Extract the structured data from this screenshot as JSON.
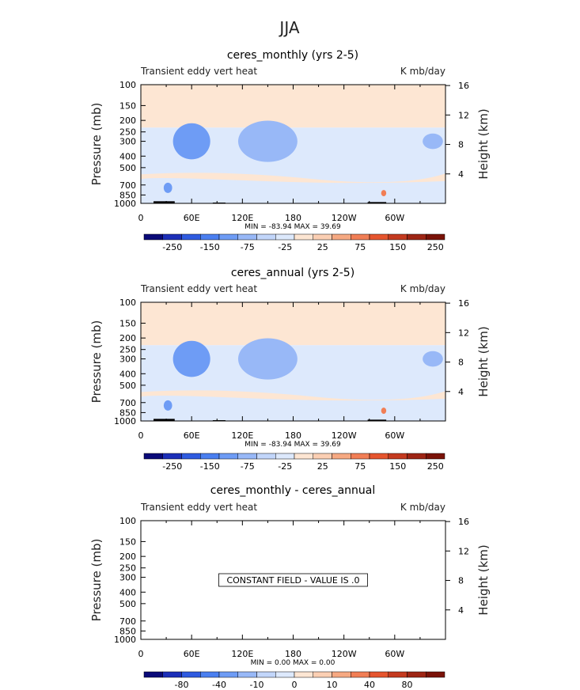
{
  "page_title": "JJA",
  "chart_data": [
    {
      "type": "heatmap",
      "title": "ceres_monthly (yrs 2-5)",
      "left_label": "Transient eddy vert heat",
      "right_label": "K mb/day",
      "ylabel": "Pressure (mb)",
      "ylabel_right": "Height (km)",
      "x_ticks": [
        "0",
        "60E",
        "120E",
        "180",
        "120W",
        "60W"
      ],
      "x_tick_values": [
        0,
        60,
        120,
        180,
        240,
        300
      ],
      "xlim": [
        0,
        360
      ],
      "y_ticks": [
        "100",
        "150",
        "200",
        "250",
        "300",
        "400",
        "500",
        "700",
        "850",
        "1000"
      ],
      "y_tick_values": [
        100,
        150,
        200,
        250,
        300,
        400,
        500,
        700,
        850,
        1000
      ],
      "ylim": [
        100,
        1000
      ],
      "y_scale": "log",
      "y_right_ticks": [
        "16",
        "12",
        "8",
        "4"
      ],
      "y_right_values": [
        16,
        12,
        8,
        4
      ],
      "stats": "MIN = -83.94   MAX =  39.69",
      "colorbar_labels": [
        "-250",
        "-150",
        "-75",
        "-25",
        "25",
        "75",
        "150",
        "250"
      ],
      "features": [
        {
          "lon": 60,
          "p": 300,
          "level": -40,
          "rx": 14,
          "ry": 0.2
        },
        {
          "lon": 60,
          "p": 300,
          "level": -20,
          "rx": 22,
          "ry": 0.35
        },
        {
          "lon": 150,
          "p": 300,
          "level": -20,
          "rx": 20,
          "ry": 0.22
        },
        {
          "lon": 150,
          "p": 300,
          "level": -10,
          "rx": 35,
          "ry": 0.4
        },
        {
          "lon": 345,
          "p": 300,
          "level": -10,
          "rx": 12,
          "ry": 0.15
        },
        {
          "lon": 32,
          "p": 740,
          "level": -20,
          "rx": 5,
          "ry": 0.1
        },
        {
          "lon": 287,
          "p": 820,
          "level": 20,
          "rx": 3,
          "ry": 0.06
        }
      ],
      "constant_text": ""
    },
    {
      "type": "heatmap",
      "title": "ceres_annual (yrs 2-5)",
      "left_label": "Transient eddy vert heat",
      "right_label": "K mb/day",
      "ylabel": "Pressure (mb)",
      "ylabel_right": "Height (km)",
      "x_ticks": [
        "0",
        "60E",
        "120E",
        "180",
        "120W",
        "60W"
      ],
      "x_tick_values": [
        0,
        60,
        120,
        180,
        240,
        300
      ],
      "xlim": [
        0,
        360
      ],
      "y_ticks": [
        "100",
        "150",
        "200",
        "250",
        "300",
        "400",
        "500",
        "700",
        "850",
        "1000"
      ],
      "y_tick_values": [
        100,
        150,
        200,
        250,
        300,
        400,
        500,
        700,
        850,
        1000
      ],
      "ylim": [
        100,
        1000
      ],
      "y_scale": "log",
      "y_right_ticks": [
        "16",
        "12",
        "8",
        "4"
      ],
      "y_right_values": [
        16,
        12,
        8,
        4
      ],
      "stats": "MIN = -83.94   MAX =  39.69",
      "colorbar_labels": [
        "-250",
        "-150",
        "-75",
        "-25",
        "25",
        "75",
        "150",
        "250"
      ],
      "features": [
        {
          "lon": 60,
          "p": 300,
          "level": -40,
          "rx": 14,
          "ry": 0.2
        },
        {
          "lon": 60,
          "p": 300,
          "level": -20,
          "rx": 22,
          "ry": 0.35
        },
        {
          "lon": 150,
          "p": 300,
          "level": -20,
          "rx": 20,
          "ry": 0.22
        },
        {
          "lon": 150,
          "p": 300,
          "level": -10,
          "rx": 35,
          "ry": 0.4
        },
        {
          "lon": 345,
          "p": 300,
          "level": -10,
          "rx": 12,
          "ry": 0.15
        },
        {
          "lon": 32,
          "p": 740,
          "level": -20,
          "rx": 5,
          "ry": 0.1
        },
        {
          "lon": 287,
          "p": 820,
          "level": 20,
          "rx": 3,
          "ry": 0.06
        }
      ],
      "constant_text": ""
    },
    {
      "type": "heatmap",
      "title": "ceres_monthly - ceres_annual",
      "left_label": "Transient eddy vert heat",
      "right_label": "K mb/day",
      "ylabel": "Pressure (mb)",
      "ylabel_right": "Height (km)",
      "x_ticks": [
        "0",
        "60E",
        "120E",
        "180",
        "120W",
        "60W"
      ],
      "x_tick_values": [
        0,
        60,
        120,
        180,
        240,
        300
      ],
      "xlim": [
        0,
        360
      ],
      "y_ticks": [
        "100",
        "150",
        "200",
        "250",
        "300",
        "400",
        "500",
        "700",
        "850",
        "1000"
      ],
      "y_tick_values": [
        100,
        150,
        200,
        250,
        300,
        400,
        500,
        700,
        850,
        1000
      ],
      "ylim": [
        100,
        1000
      ],
      "y_scale": "log",
      "y_right_ticks": [
        "16",
        "12",
        "8",
        "4"
      ],
      "y_right_values": [
        16,
        12,
        8,
        4
      ],
      "stats": "MIN =    0.00   MAX =    0.00",
      "colorbar_labels": [
        "-80",
        "-40",
        "-10",
        "0",
        "10",
        "40",
        "80"
      ],
      "features": [],
      "constant_text": "CONSTANT FIELD - VALUE IS .0"
    }
  ],
  "colors": {
    "palette": [
      "#0a0a78",
      "#1c2fb8",
      "#2f5be0",
      "#4a7ff0",
      "#6e9cf5",
      "#98b8f7",
      "#c2d6fa",
      "#dde9fc",
      "#fde6d3",
      "#fbcfb3",
      "#f6a982",
      "#f17e55",
      "#e6552e",
      "#c43a1f",
      "#9e2514",
      "#7a1208"
    ],
    "neg_bg": "#dde9fc",
    "pos_bg": "#fde6d3",
    "topo": "#000000"
  }
}
